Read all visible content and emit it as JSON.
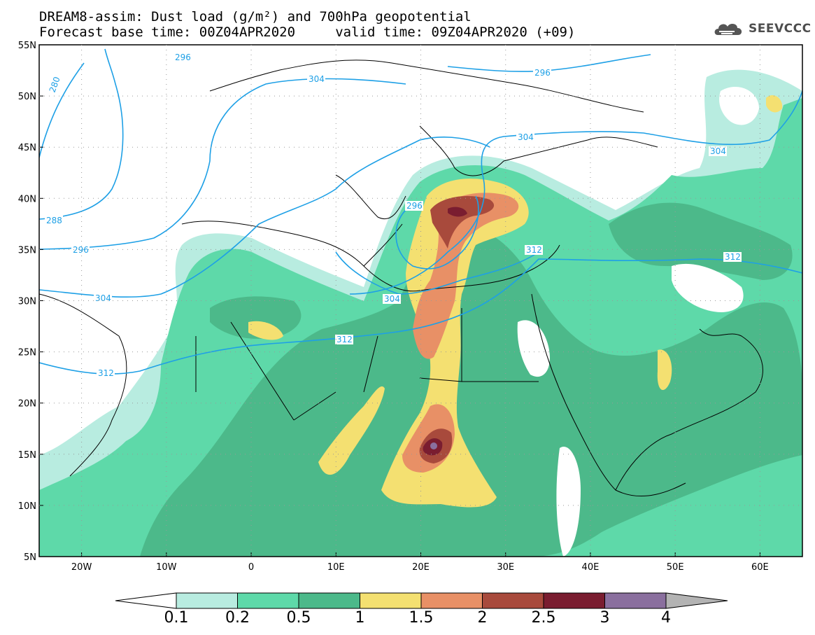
{
  "title": {
    "line1": "DREAM8-assim: Dust load (g/m²) and 700hPa geopotential",
    "line2": "Forecast base time: 00Z04APR2020     valid time: 09Z04APR2020 (+09)"
  },
  "logo": {
    "text": "SEEVCCC",
    "icon": "cloud-icon"
  },
  "axes": {
    "lat_ticks": [
      "55N",
      "50N",
      "45N",
      "40N",
      "35N",
      "30N",
      "25N",
      "20N",
      "15N",
      "10N",
      "5N"
    ],
    "lon_ticks": [
      "20W",
      "10W",
      "0",
      "10E",
      "20E",
      "30E",
      "40E",
      "50E",
      "60E"
    ],
    "lat_range": [
      5,
      55
    ],
    "lon_range": [
      -25,
      65
    ]
  },
  "contours": {
    "labels": [
      "280",
      "288",
      "296",
      "304",
      "312",
      "296",
      "304",
      "312",
      "296",
      "304",
      "304",
      "304",
      "312",
      "312",
      "296"
    ],
    "color": "#1ea0e6"
  },
  "colorbar": {
    "labels": [
      "0.1",
      "0.2",
      "0.5",
      "1",
      "1.5",
      "2",
      "2.5",
      "3",
      "4"
    ],
    "colors": [
      "#b8ece0",
      "#5ed9a9",
      "#4cb98a",
      "#f4e071",
      "#e89066",
      "#a84a3c",
      "#7a1d30",
      "#8a6f9e",
      "#b3b3b3"
    ]
  }
}
